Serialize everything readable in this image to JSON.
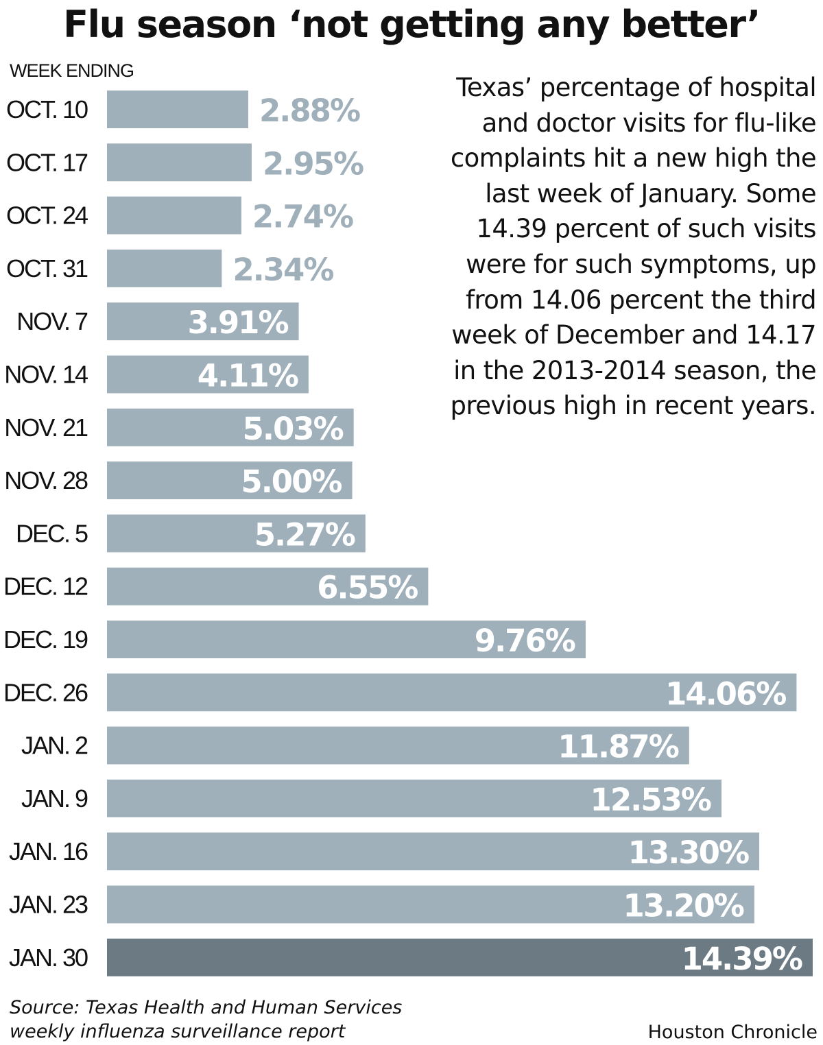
{
  "title": "Flu season ‘not getting any better’",
  "axis_header": "WEEK ENDING",
  "description": "Texas’ percentage of hospital and doctor visits for flu-like complaints hit a new high the last week of January. Some 14.39 percent of such visits were for such symptoms, up from 14.06 percent the third week of December and 14.17 in the 2013-2014 season, the previous high in recent years.",
  "source": "Source: Texas Health and Human Services weekly influenza surveillance report",
  "credit": "Houston Chronicle",
  "colors": {
    "bar": "#9fb0bb",
    "bar_highlight": "#6b7a83",
    "label_inside": "#ffffff",
    "label_outside": "#9fb0bb"
  },
  "chart_data": {
    "type": "bar",
    "orientation": "horizontal",
    "title": "Flu season ‘not getting any better’",
    "categories": [
      "OCT. 10",
      "OCT. 17",
      "OCT. 24",
      "OCT. 31",
      "NOV. 7",
      "NOV. 14",
      "NOV. 21",
      "NOV. 28",
      "DEC. 5",
      "DEC. 12",
      "DEC. 19",
      "DEC. 26",
      "JAN. 2",
      "JAN. 9",
      "JAN. 16",
      "JAN. 23",
      "JAN. 30"
    ],
    "values": [
      2.88,
      2.95,
      2.74,
      2.34,
      3.91,
      4.11,
      5.03,
      5.0,
      5.27,
      6.55,
      9.76,
      14.06,
      11.87,
      12.53,
      13.3,
      13.2,
      14.39
    ],
    "value_labels": [
      "2.88%",
      "2.95%",
      "2.74%",
      "2.34%",
      "3.91%",
      "4.11%",
      "5.03%",
      "5.00%",
      "5.27%",
      "6.55%",
      "9.76%",
      "14.06%",
      "11.87%",
      "12.53%",
      "13.30%",
      "13.20%",
      "14.39%"
    ],
    "highlight_index": 16,
    "xlabel": "",
    "ylabel": "WEEK ENDING",
    "xlim": [
      0,
      14.39
    ]
  }
}
